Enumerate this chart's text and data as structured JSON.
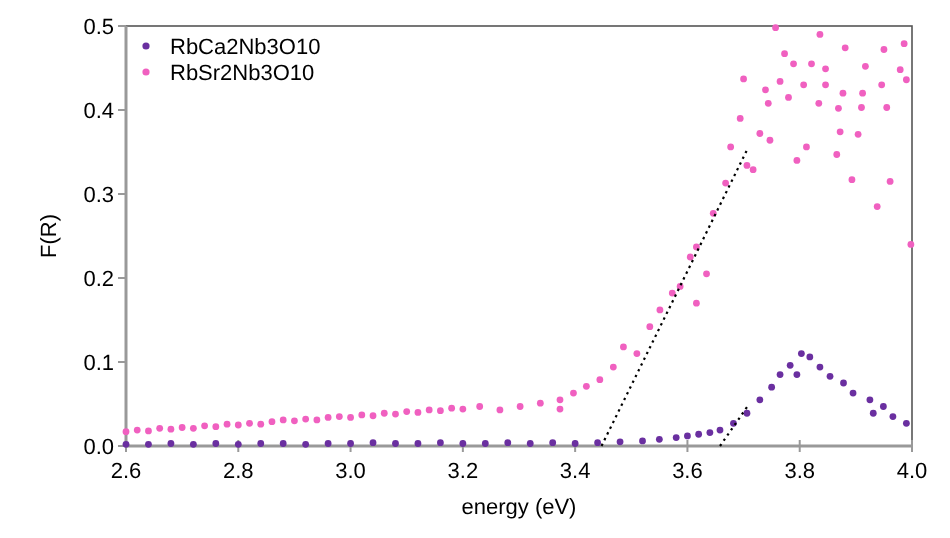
{
  "chart_data": {
    "type": "scatter",
    "xlabel": "energy (eV)",
    "ylabel": "F(R)",
    "xlim": [
      2.6,
      4.0
    ],
    "ylim": [
      0,
      0.5
    ],
    "xticks": [
      {
        "value": 2.6,
        "label": "2.6"
      },
      {
        "value": 2.8,
        "label": "2.8"
      },
      {
        "value": 3.0,
        "label": "3.0"
      },
      {
        "value": 3.2,
        "label": "3.2"
      },
      {
        "value": 3.4,
        "label": "3.4"
      },
      {
        "value": 3.6,
        "label": "3.6"
      },
      {
        "value": 3.8,
        "label": "3.8"
      },
      {
        "value": 4.0,
        "label": "4.0"
      }
    ],
    "yticks": [
      {
        "value": 0,
        "label": "0.0"
      },
      0.1,
      0.2,
      0.3,
      0.4,
      0.5
    ],
    "grid": false,
    "legend": "top left",
    "marker": "circle",
    "series": [
      {
        "name": "RbCa2Nb3O10",
        "color": "#6a2fa0",
        "x": [
          2.6,
          2.64,
          2.68,
          2.72,
          2.76,
          2.8,
          2.84,
          2.88,
          2.92,
          2.96,
          3.0,
          3.04,
          3.08,
          3.12,
          3.16,
          3.2,
          3.24,
          3.28,
          3.32,
          3.36,
          3.4,
          3.44,
          3.48,
          3.52,
          3.55,
          3.58,
          3.6,
          3.62,
          3.64,
          3.658,
          3.682,
          3.706,
          3.729,
          3.75,
          3.765,
          3.783,
          3.795,
          3.803,
          3.818,
          3.836,
          3.854,
          3.878,
          3.895,
          3.925,
          3.931,
          3.949,
          3.966,
          3.99
        ],
        "values": [
          0.002,
          0.002,
          0.003,
          0.002,
          0.003,
          0.002,
          0.003,
          0.003,
          0.002,
          0.003,
          0.003,
          0.004,
          0.003,
          0.003,
          0.004,
          0.003,
          0.003,
          0.004,
          0.003,
          0.004,
          0.003,
          0.004,
          0.005,
          0.006,
          0.008,
          0.01,
          0.012,
          0.014,
          0.016,
          0.019,
          0.027,
          0.039,
          0.055,
          0.07,
          0.085,
          0.096,
          0.085,
          0.11,
          0.106,
          0.094,
          0.083,
          0.075,
          0.063,
          0.055,
          0.039,
          0.047,
          0.035,
          0.027
        ]
      },
      {
        "name": "RbSr2Nb3O10",
        "color": "#f060c0",
        "x": [
          2.6,
          2.62,
          2.64,
          2.66,
          2.68,
          2.7,
          2.72,
          2.74,
          2.76,
          2.78,
          2.8,
          2.82,
          2.84,
          2.86,
          2.88,
          2.9,
          2.92,
          2.94,
          2.96,
          2.98,
          3.0,
          3.02,
          3.04,
          3.06,
          3.08,
          3.1,
          3.12,
          3.14,
          3.16,
          3.18,
          3.2,
          3.23,
          3.266,
          3.302,
          3.338,
          3.373,
          3.373,
          3.397,
          3.42,
          3.444,
          3.468,
          3.486,
          3.51,
          3.533,
          3.551,
          3.573,
          3.587,
          3.605,
          3.616,
          3.616,
          3.634,
          3.646,
          3.668,
          3.677,
          3.694,
          3.7,
          3.706,
          3.717,
          3.729,
          3.739,
          3.744,
          3.747,
          3.757,
          3.765,
          3.773,
          3.78,
          3.789,
          3.795,
          3.807,
          3.812,
          3.821,
          3.834,
          3.836,
          3.846,
          3.846,
          3.866,
          3.869,
          3.872,
          3.877,
          3.881,
          3.893,
          3.904,
          3.91,
          3.912,
          3.917,
          3.938,
          3.946,
          3.95,
          3.955,
          3.961,
          3.979,
          3.986,
          3.99,
          3.998
        ],
        "values": [
          0.017,
          0.019,
          0.018,
          0.021,
          0.02,
          0.022,
          0.021,
          0.024,
          0.023,
          0.026,
          0.025,
          0.027,
          0.026,
          0.029,
          0.031,
          0.03,
          0.032,
          0.031,
          0.034,
          0.035,
          0.034,
          0.037,
          0.036,
          0.039,
          0.038,
          0.041,
          0.04,
          0.043,
          0.042,
          0.045,
          0.044,
          0.047,
          0.043,
          0.047,
          0.051,
          0.055,
          0.044,
          0.063,
          0.071,
          0.079,
          0.094,
          0.118,
          0.11,
          0.142,
          0.162,
          0.182,
          0.19,
          0.225,
          0.237,
          0.17,
          0.205,
          0.277,
          0.313,
          0.356,
          0.39,
          0.437,
          0.334,
          0.329,
          0.372,
          0.424,
          0.408,
          0.364,
          0.498,
          0.434,
          0.467,
          0.415,
          0.455,
          0.34,
          0.43,
          0.356,
          0.455,
          0.408,
          0.49,
          0.449,
          0.43,
          0.347,
          0.402,
          0.374,
          0.42,
          0.474,
          0.317,
          0.371,
          0.403,
          0.42,
          0.452,
          0.285,
          0.43,
          0.472,
          0.403,
          0.315,
          0.448,
          0.479,
          0.436,
          0.24
        ]
      },
      {
        "type": "line",
        "color": "#000000",
        "line_style": "dotted",
        "marker": "none",
        "x": [
          3.447,
          3.708
        ],
        "values": [
          0,
          0.355
        ]
      },
      {
        "type": "line",
        "color": "#000000",
        "line_style": "dotted",
        "marker": "none",
        "x": [
          3.658,
          3.71
        ],
        "values": [
          0,
          0.05
        ]
      }
    ]
  }
}
